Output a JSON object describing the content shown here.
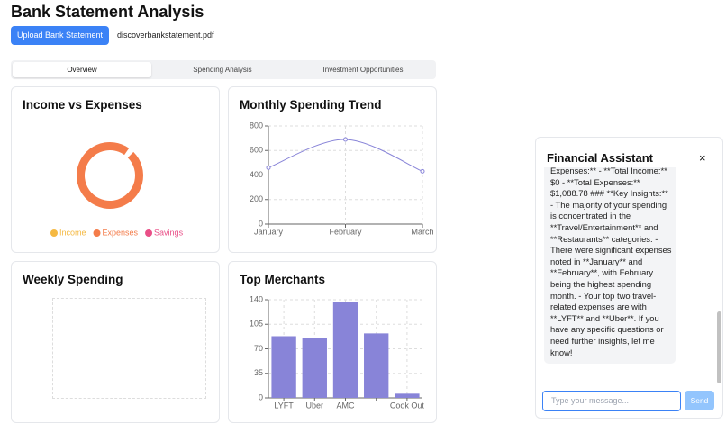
{
  "header": {
    "title": "Bank Statement Analysis",
    "upload_button": "Upload Bank Statement",
    "file_name": "discoverbankstatement.pdf"
  },
  "tabs": [
    "Overview",
    "Spending Analysis",
    "Investment Opportunities"
  ],
  "active_tab": 0,
  "charts": [
    {
      "type": "pie",
      "title": "Income vs Expenses",
      "donut": true,
      "series": [
        {
          "name": "Income",
          "color": "#f5b942",
          "values": [
            0
          ]
        },
        {
          "name": "Expenses",
          "color": "#f47c4a",
          "values": [
            100
          ]
        },
        {
          "name": "Savings",
          "color": "#e94f87",
          "values": [
            0
          ]
        }
      ]
    },
    {
      "type": "line",
      "title": "Monthly Spending Trend",
      "categories": [
        "January",
        "February",
        "March"
      ],
      "values": [
        460,
        690,
        430
      ],
      "color": "#8884d8",
      "ylim": [
        0,
        800
      ],
      "yticks": [
        0,
        200,
        400,
        600,
        800
      ],
      "grid": true
    },
    {
      "type": "empty",
      "title": "Weekly Spending"
    },
    {
      "type": "bar",
      "title": "Top Merchants",
      "categories": [
        "LYFT",
        "Uber",
        "AMC",
        null,
        "Cook Out"
      ],
      "values": [
        88,
        85,
        137,
        92,
        6
      ],
      "color": "#8884d8",
      "ylim": [
        0,
        140
      ],
      "yticks": [
        0,
        35,
        70,
        105,
        140
      ],
      "grid": true
    }
  ],
  "chat": {
    "title": "Financial Assistant",
    "close": "×",
    "message_lines": [
      "Expenses:** - **Total Income:**",
      "$0 - **Total Expenses:**",
      "$1,088.78 ### **Key Insights:**",
      "- The majority of your spending",
      "is concentrated in the",
      "**Travel/Entertainment** and",
      "**Restaurants** categories. -",
      "There were significant expenses",
      "noted in **January** and",
      "**February**, with February",
      "being the highest spending",
      "month. - Your top two travel-",
      "related expenses are with",
      "**LYFT** and **Uber**. If you",
      "have any specific questions or",
      "need further insights, let me",
      "know!"
    ],
    "placeholder": "Type your message...",
    "send": "Send"
  }
}
